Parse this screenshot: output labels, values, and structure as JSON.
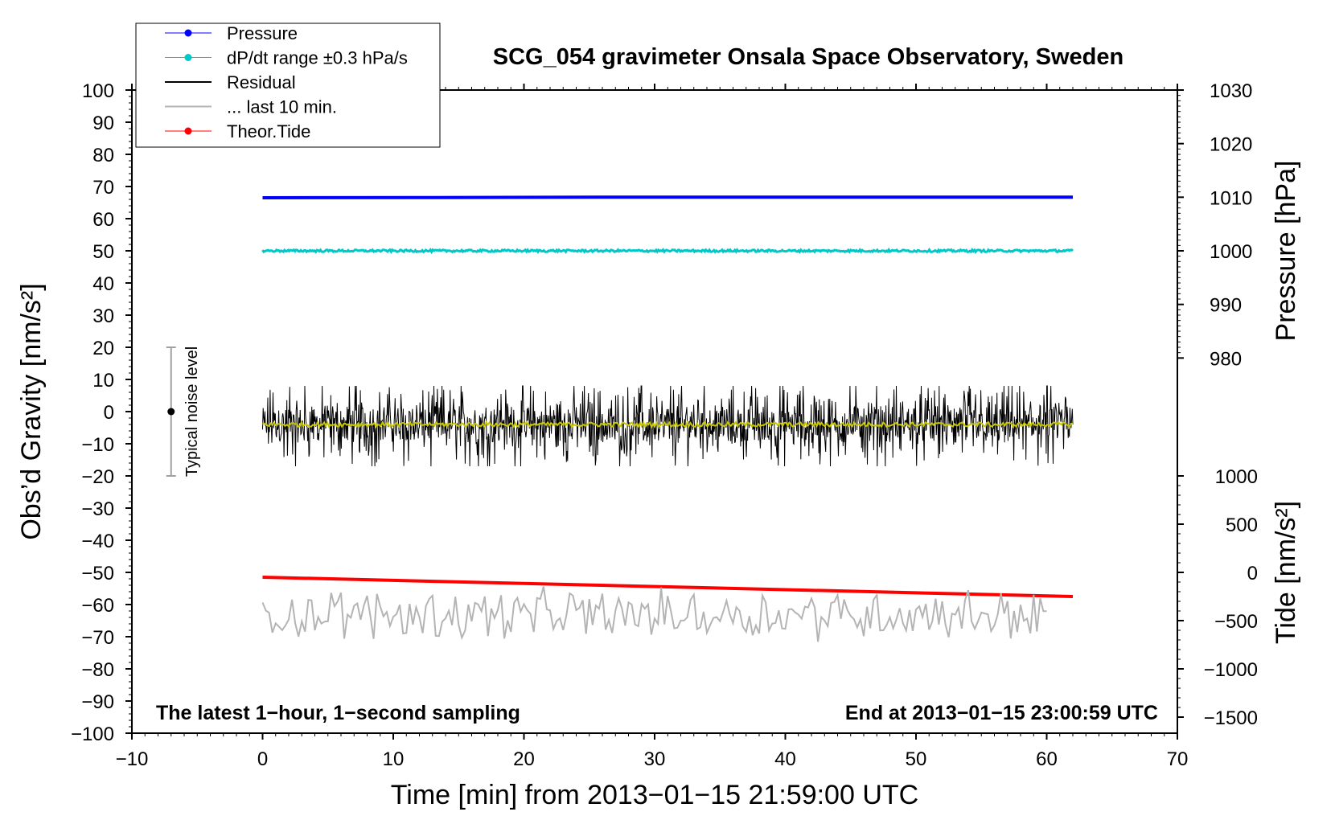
{
  "chart_data": {
    "type": "line",
    "title": "SCG_054 gravimeter Onsala Space Observatory, Sweden",
    "xlabel": "Time [min] from 2013−01−15 21:59:00 UTC",
    "ylabel_left": "Obs’d Gravity [nm/s²]",
    "ylabel_right_upper": "Pressure [hPa]",
    "ylabel_right_lower": "Tide [nm/s²]",
    "xlim": [
      -10,
      70
    ],
    "ylim_left": [
      -100,
      100
    ],
    "xticks": [
      -10,
      0,
      10,
      20,
      30,
      40,
      50,
      60,
      70
    ],
    "xtick_labels": [
      "−10",
      "0",
      "10",
      "20",
      "30",
      "40",
      "50",
      "60",
      "70"
    ],
    "yticks_left": [
      100,
      90,
      80,
      70,
      60,
      50,
      40,
      30,
      20,
      10,
      0,
      -10,
      -20,
      -30,
      -40,
      -50,
      -60,
      -70,
      -80,
      -90,
      -100
    ],
    "ytick_labels_left": [
      "100",
      "90",
      "80",
      "70",
      "60",
      "50",
      "40",
      "30",
      "20",
      "10",
      "0",
      "−10",
      "−20",
      "−30",
      "−40",
      "−50",
      "−60",
      "−70",
      "−80",
      "−90",
      "−100"
    ],
    "pressure_axis": {
      "ticks": [
        1030,
        1020,
        1010,
        1000,
        990,
        980
      ],
      "tick_labels": [
        "1030",
        "1020",
        "1010",
        "1000",
        "990",
        "980"
      ],
      "left_equivalent": {
        "at_1030": 100,
        "hpa_per_unit": 0.6
      }
    },
    "tide_axis": {
      "ticks": [
        1000,
        500,
        0,
        -500,
        -1000,
        -1500
      ],
      "tick_labels": [
        "1000",
        "500",
        "0",
        "−500",
        "−1000",
        "−1500"
      ],
      "left_equivalent": {
        "at_0": -50,
        "units_per_left_unit": 33.333
      }
    },
    "legend_position": "top-left",
    "legend": [
      {
        "label": "Pressure",
        "color": "#0000ff",
        "marker": true
      },
      {
        "label": "dP/dt range ±0.3 hPa/s",
        "color": "#00c8c8",
        "marker": true
      },
      {
        "label": "Residual",
        "color": "#000000",
        "marker": false
      },
      {
        "label": "... last 10 min.",
        "color": "#b4b4b4",
        "marker": false
      },
      {
        "label": "Theor.Tide",
        "color": "#ff0000",
        "marker": true
      }
    ],
    "series": [
      {
        "name": "Pressure",
        "color": "#0000ff",
        "x": [
          0,
          13,
          26,
          39,
          52,
          62
        ],
        "y_hpa": [
          1009.9,
          1009.95,
          1010.0,
          1010.0,
          1010.0,
          1010.0
        ]
      },
      {
        "name": "dP/dt range ±0.3 hPa/s",
        "color": "#00c8c8",
        "x": [
          0,
          62
        ],
        "y_hpa": [
          1000,
          1000
        ],
        "noise_hpa": 0.4
      },
      {
        "name": "Residual",
        "color": "#000000",
        "x": [
          0,
          62
        ],
        "y": [
          -4,
          -4
        ],
        "spread": 22,
        "min": -17,
        "max": 8
      },
      {
        "name": "Residual (smoothed)",
        "color": "#c8c800",
        "x": [
          0,
          62
        ],
        "y": [
          -4,
          -4
        ]
      },
      {
        "name": "Theor.Tide",
        "color": "#ff0000",
        "x": [
          0,
          62
        ],
        "y": [
          -51.5,
          -57.5
        ]
      },
      {
        "name": "... last 10 min.",
        "color": "#b4b4b4",
        "x": [
          0,
          60
        ],
        "y_center": -63,
        "min": -74,
        "max": -52
      }
    ],
    "noise_bar": {
      "label": "Typical noise level",
      "x": -7,
      "y_center": 0,
      "y_range": [
        -20,
        20
      ]
    },
    "annotation_left": "The latest 1−hour, 1−second sampling",
    "annotation_right": "End at 2013−01−15 23:00:59 UTC"
  }
}
